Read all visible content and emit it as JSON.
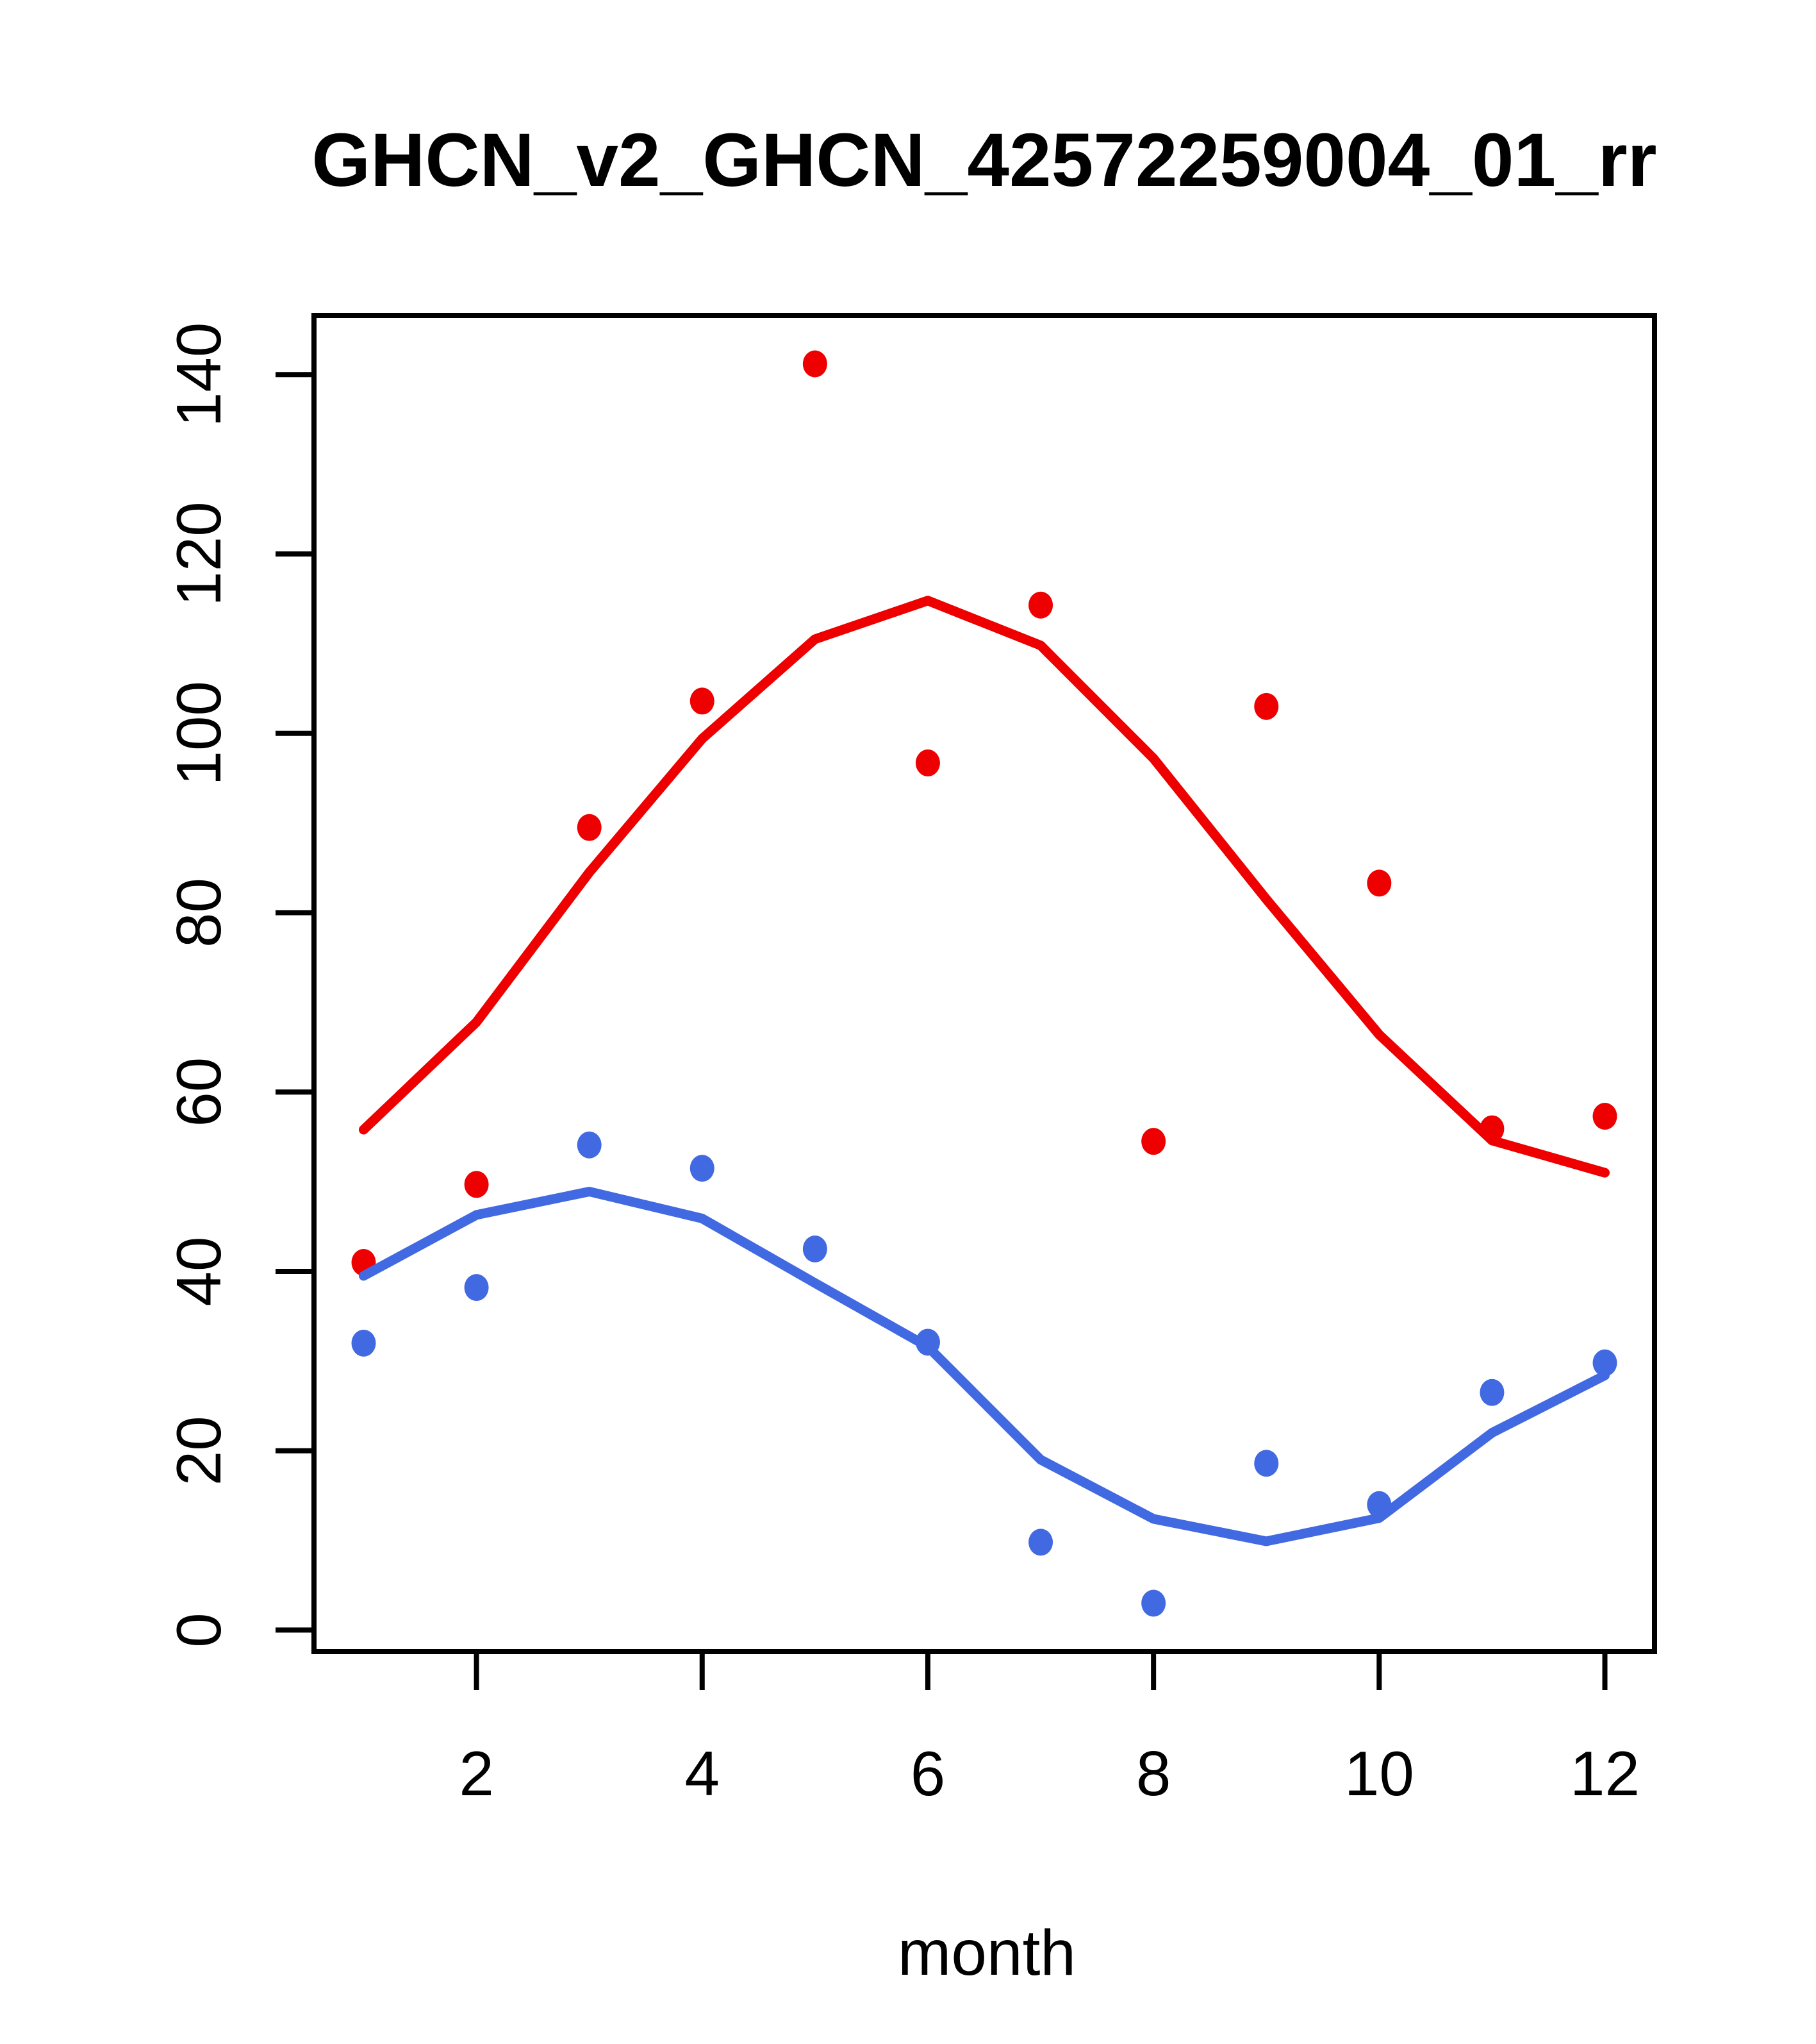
{
  "title": "GHCN_v2_GHCN_42572259004_01_rr",
  "colors": {
    "red_series": "#ee0000",
    "blue_series": "#4169e1",
    "axis": "#000000",
    "background": "#ffffff"
  },
  "chart_data": {
    "type": "scatter",
    "title": "GHCN_v2_GHCN_42572259004_01_rr",
    "xlabel": "month",
    "ylabel": "",
    "x": [
      1,
      2,
      3,
      4,
      5,
      6,
      7,
      8,
      9,
      10,
      11,
      12
    ],
    "x_ticks": [
      2,
      4,
      6,
      8,
      10,
      12
    ],
    "y_ticks": [
      0,
      20,
      40,
      60,
      80,
      100,
      120,
      140
    ],
    "xlim": [
      0.56,
      12.44
    ],
    "ylim": [
      -2.4,
      146.6
    ],
    "grid": false,
    "legend": "none",
    "series": [
      {
        "name": "red points (monthly values)",
        "kind": "points",
        "color": "#ee0000",
        "values": [
          41,
          49.7,
          89.5,
          103.6,
          141.2,
          96.7,
          114.3,
          54.5,
          103,
          83.3,
          55.9,
          57.3
        ]
      },
      {
        "name": "red smooth line",
        "kind": "line",
        "color": "#ee0000",
        "values": [
          55.8,
          67.8,
          84.5,
          99.4,
          110.5,
          114.8,
          109.8,
          97.2,
          81.5,
          66.4,
          54.6,
          51
        ]
      },
      {
        "name": "blue points (monthly values)",
        "kind": "points",
        "color": "#4169e1",
        "values": [
          32,
          38.2,
          54.1,
          51.5,
          42.5,
          32.1,
          9.8,
          3,
          18.6,
          14,
          26.5,
          29.8
        ]
      },
      {
        "name": "blue smooth line",
        "kind": "line",
        "color": "#4169e1",
        "values": [
          39.5,
          46.3,
          48.9,
          45.9,
          38.7,
          31.6,
          19,
          12.4,
          9.9,
          12.5,
          22,
          28.4
        ]
      }
    ]
  }
}
